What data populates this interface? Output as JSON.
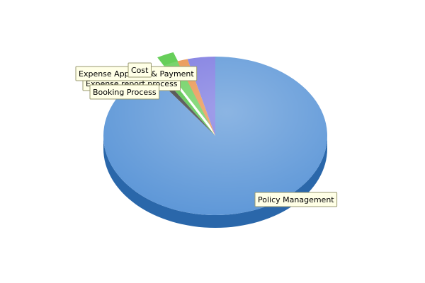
{
  "chart_data": {
    "type": "pie",
    "slices": [
      {
        "name": "Policy Management",
        "value": 90.0,
        "color": "#5f98d8",
        "side": "#2a67aa"
      },
      {
        "name": "Booking Process",
        "value": 1.0,
        "color": "#3a3a3a",
        "side": "#1e1e1e"
      },
      {
        "name": "Expense report process",
        "value": 1.0,
        "color": "#4bbf3f",
        "side": "#2f8a27"
      },
      {
        "name": "Expense Approval & Payment",
        "value": 2.5,
        "color": "#67cf5a",
        "side": "#3f9b35",
        "exploded": true
      },
      {
        "name": "Cost",
        "value": 1.5,
        "color": "#e8914a",
        "side": "#b56528"
      },
      {
        "name": "",
        "value": 4.0,
        "color": "#7c79e0",
        "side": "#4f4bb5"
      }
    ],
    "legend": "none",
    "labels": "callouts"
  }
}
